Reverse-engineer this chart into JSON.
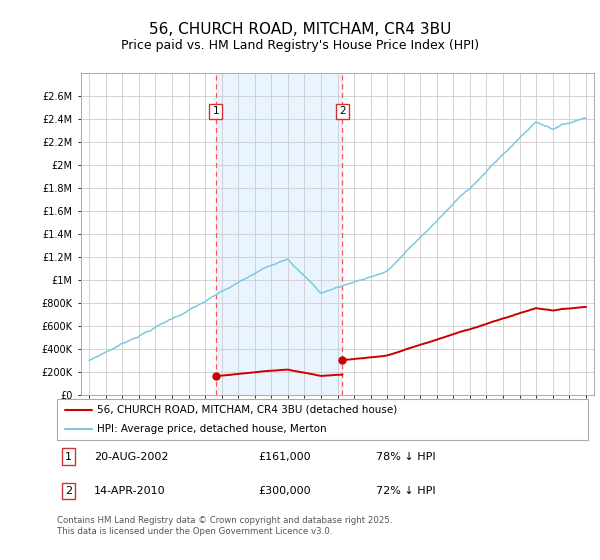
{
  "title": "56, CHURCH ROAD, MITCHAM, CR4 3BU",
  "subtitle": "Price paid vs. HM Land Registry's House Price Index (HPI)",
  "title_fontsize": 11,
  "subtitle_fontsize": 9,
  "background_color": "#ffffff",
  "grid_color": "#cccccc",
  "sale1": {
    "date": "20-AUG-2002",
    "price": 161000,
    "note": "78% ↓ HPI",
    "x": 2002.64
  },
  "sale2": {
    "date": "14-APR-2010",
    "price": 300000,
    "note": "72% ↓ HPI",
    "x": 2010.29
  },
  "legend_line1": "56, CHURCH ROAD, MITCHAM, CR4 3BU (detached house)",
  "legend_line2": "HPI: Average price, detached house, Merton",
  "footer": "Contains HM Land Registry data © Crown copyright and database right 2025.\nThis data is licensed under the Open Government Licence v3.0.",
  "hpi_color": "#7ec8e3",
  "price_color": "#cc0000",
  "vline_color": "#ff5555",
  "shade_color": "#ddeeff",
  "ymax": 2800000,
  "yticks": [
    0,
    200000,
    400000,
    600000,
    800000,
    1000000,
    1200000,
    1400000,
    1600000,
    1800000,
    2000000,
    2200000,
    2400000,
    2600000
  ],
  "ytick_labels": [
    "£0",
    "£200K",
    "£400K",
    "£600K",
    "£800K",
    "£1M",
    "£1.2M",
    "£1.4M",
    "£1.6M",
    "£1.8M",
    "£2M",
    "£2.2M",
    "£2.4M",
    "£2.6M"
  ],
  "xmin": 1994.5,
  "xmax": 2025.5,
  "xticks": [
    1995,
    1996,
    1997,
    1998,
    1999,
    2000,
    2001,
    2002,
    2003,
    2004,
    2005,
    2006,
    2007,
    2008,
    2009,
    2010,
    2011,
    2012,
    2013,
    2014,
    2015,
    2016,
    2017,
    2018,
    2019,
    2020,
    2021,
    2022,
    2023,
    2024,
    2025
  ]
}
